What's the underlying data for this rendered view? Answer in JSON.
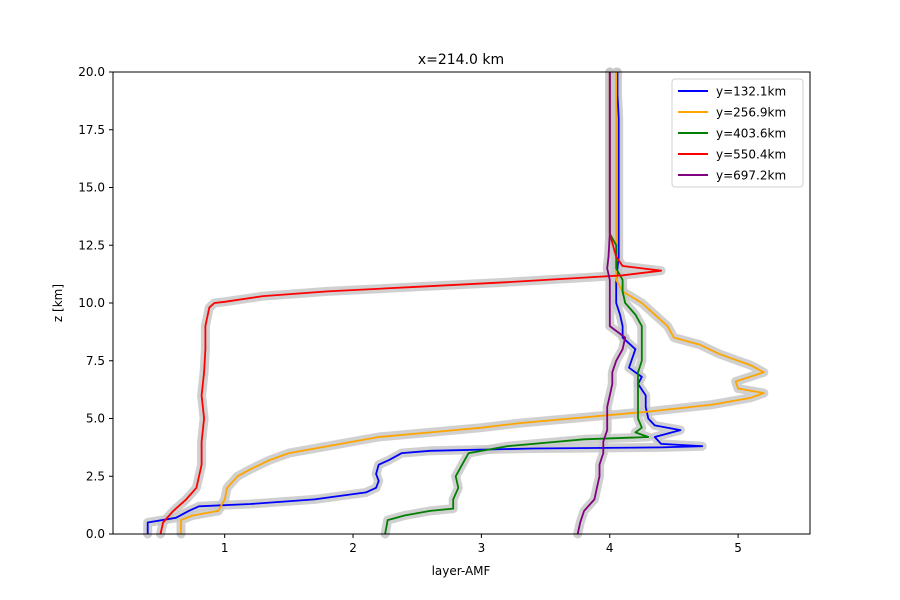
{
  "chart_data": {
    "type": "line",
    "title": "x=214.0 km",
    "xlabel": "layer-AMF",
    "ylabel": "z [km]",
    "xlim": [
      0.13,
      5.56
    ],
    "ylim": [
      0,
      20
    ],
    "xticks": [
      1,
      2,
      3,
      4,
      5
    ],
    "yticks": [
      0.0,
      2.5,
      5.0,
      7.5,
      10.0,
      12.5,
      15.0,
      17.5,
      20.0
    ],
    "grid": false,
    "legend_position": "top-right",
    "series": [
      {
        "name": "y=132.1km",
        "color": "#0000ff",
        "points": [
          [
            0.4,
            0.0
          ],
          [
            0.4,
            0.5
          ],
          [
            0.62,
            0.7
          ],
          [
            0.72,
            1.0
          ],
          [
            0.8,
            1.2
          ],
          [
            1.2,
            1.3
          ],
          [
            1.7,
            1.5
          ],
          [
            2.1,
            1.8
          ],
          [
            2.18,
            2.0
          ],
          [
            2.2,
            2.3
          ],
          [
            2.18,
            2.6
          ],
          [
            2.2,
            3.0
          ],
          [
            2.28,
            3.2
          ],
          [
            2.38,
            3.5
          ],
          [
            2.6,
            3.6
          ],
          [
            3.4,
            3.7
          ],
          [
            4.4,
            3.75
          ],
          [
            4.72,
            3.8
          ],
          [
            4.4,
            3.9
          ],
          [
            4.35,
            4.2
          ],
          [
            4.55,
            4.5
          ],
          [
            4.35,
            4.7
          ],
          [
            4.3,
            5.0
          ],
          [
            4.28,
            5.5
          ],
          [
            4.28,
            6.0
          ],
          [
            4.22,
            6.5
          ],
          [
            4.25,
            6.8
          ],
          [
            4.15,
            7.2
          ],
          [
            4.2,
            8.0
          ],
          [
            4.1,
            8.5
          ],
          [
            4.1,
            9.0
          ],
          [
            4.08,
            9.5
          ],
          [
            4.05,
            10.0
          ],
          [
            4.05,
            11.0
          ],
          [
            4.07,
            12.0
          ],
          [
            4.07,
            13.0
          ],
          [
            4.07,
            14.0
          ],
          [
            4.07,
            15.0
          ],
          [
            4.07,
            16.0
          ],
          [
            4.07,
            17.0
          ],
          [
            4.07,
            18.0
          ],
          [
            4.06,
            19.0
          ],
          [
            4.06,
            20.0
          ]
        ]
      },
      {
        "name": "y=256.9km",
        "color": "#ffa500",
        "points": [
          [
            0.66,
            0.0
          ],
          [
            0.66,
            0.6
          ],
          [
            0.75,
            0.8
          ],
          [
            0.95,
            1.0
          ],
          [
            1.0,
            1.5
          ],
          [
            1.02,
            2.0
          ],
          [
            1.1,
            2.5
          ],
          [
            1.2,
            2.8
          ],
          [
            1.35,
            3.2
          ],
          [
            1.5,
            3.5
          ],
          [
            1.8,
            3.8
          ],
          [
            2.0,
            4.0
          ],
          [
            2.2,
            4.2
          ],
          [
            2.6,
            4.4
          ],
          [
            3.0,
            4.6
          ],
          [
            3.3,
            4.8
          ],
          [
            3.7,
            5.0
          ],
          [
            4.3,
            5.3
          ],
          [
            4.8,
            5.6
          ],
          [
            5.1,
            5.9
          ],
          [
            5.2,
            6.1
          ],
          [
            5.0,
            6.3
          ],
          [
            4.98,
            6.6
          ],
          [
            5.2,
            7.0
          ],
          [
            5.1,
            7.3
          ],
          [
            4.85,
            7.8
          ],
          [
            4.7,
            8.2
          ],
          [
            4.5,
            8.5
          ],
          [
            4.45,
            9.0
          ],
          [
            4.35,
            9.5
          ],
          [
            4.25,
            10.0
          ],
          [
            4.1,
            10.5
          ],
          [
            4.05,
            11.0
          ],
          [
            4.05,
            12.0
          ],
          [
            4.05,
            13.0
          ],
          [
            4.05,
            14.0
          ],
          [
            4.05,
            15.0
          ],
          [
            4.05,
            16.0
          ],
          [
            4.05,
            17.0
          ],
          [
            4.05,
            18.0
          ],
          [
            4.05,
            19.0
          ],
          [
            4.05,
            20.0
          ]
        ]
      },
      {
        "name": "y=403.6km",
        "color": "#008000",
        "points": [
          [
            2.25,
            0.0
          ],
          [
            2.27,
            0.6
          ],
          [
            2.4,
            0.8
          ],
          [
            2.6,
            1.0
          ],
          [
            2.78,
            1.1
          ],
          [
            2.78,
            1.5
          ],
          [
            2.82,
            2.0
          ],
          [
            2.8,
            2.5
          ],
          [
            2.85,
            3.0
          ],
          [
            2.9,
            3.5
          ],
          [
            3.2,
            3.8
          ],
          [
            3.8,
            4.1
          ],
          [
            4.3,
            4.2
          ],
          [
            4.2,
            4.4
          ],
          [
            4.25,
            4.6
          ],
          [
            4.22,
            5.0
          ],
          [
            4.22,
            5.5
          ],
          [
            4.22,
            6.0
          ],
          [
            4.22,
            6.5
          ],
          [
            4.22,
            7.0
          ],
          [
            4.25,
            7.5
          ],
          [
            4.25,
            8.0
          ],
          [
            4.25,
            8.5
          ],
          [
            4.25,
            9.0
          ],
          [
            4.2,
            9.5
          ],
          [
            4.12,
            10.0
          ],
          [
            4.1,
            10.5
          ],
          [
            4.1,
            11.0
          ],
          [
            4.05,
            11.5
          ],
          [
            4.05,
            12.5
          ],
          [
            4.0,
            13.0
          ],
          [
            4.0,
            14.0
          ],
          [
            4.0,
            15.0
          ],
          [
            4.0,
            16.0
          ],
          [
            4.0,
            17.0
          ],
          [
            4.0,
            18.0
          ],
          [
            4.0,
            19.0
          ],
          [
            4.0,
            20.0
          ]
        ]
      },
      {
        "name": "y=550.4km",
        "color": "#ff0000",
        "points": [
          [
            0.5,
            0.0
          ],
          [
            0.52,
            0.5
          ],
          [
            0.6,
            1.0
          ],
          [
            0.7,
            1.5
          ],
          [
            0.78,
            2.0
          ],
          [
            0.8,
            2.5
          ],
          [
            0.82,
            3.0
          ],
          [
            0.82,
            4.0
          ],
          [
            0.84,
            5.0
          ],
          [
            0.82,
            6.0
          ],
          [
            0.84,
            7.0
          ],
          [
            0.85,
            8.0
          ],
          [
            0.85,
            9.0
          ],
          [
            0.88,
            9.8
          ],
          [
            0.92,
            10.0
          ],
          [
            1.0,
            10.05
          ],
          [
            1.3,
            10.3
          ],
          [
            1.8,
            10.5
          ],
          [
            2.5,
            10.7
          ],
          [
            3.2,
            10.9
          ],
          [
            3.8,
            11.1
          ],
          [
            4.1,
            11.2
          ],
          [
            4.4,
            11.4
          ],
          [
            4.1,
            11.6
          ],
          [
            4.05,
            12.0
          ],
          [
            4.0,
            13.0
          ],
          [
            4.0,
            14.0
          ],
          [
            4.0,
            15.0
          ],
          [
            4.0,
            16.0
          ],
          [
            4.0,
            17.0
          ],
          [
            4.0,
            18.0
          ],
          [
            4.0,
            19.0
          ],
          [
            4.0,
            20.0
          ]
        ]
      },
      {
        "name": "y=697.2km",
        "color": "#800080",
        "points": [
          [
            3.75,
            0.0
          ],
          [
            3.77,
            0.5
          ],
          [
            3.8,
            1.0
          ],
          [
            3.88,
            1.5
          ],
          [
            3.9,
            2.0
          ],
          [
            3.92,
            2.5
          ],
          [
            3.92,
            3.0
          ],
          [
            3.95,
            3.5
          ],
          [
            3.95,
            4.0
          ],
          [
            3.98,
            4.5
          ],
          [
            3.98,
            5.0
          ],
          [
            3.98,
            5.5
          ],
          [
            4.0,
            6.0
          ],
          [
            4.02,
            6.5
          ],
          [
            4.02,
            7.0
          ],
          [
            4.05,
            7.5
          ],
          [
            4.1,
            8.0
          ],
          [
            4.12,
            8.5
          ],
          [
            4.0,
            9.0
          ],
          [
            4.0,
            9.5
          ],
          [
            4.0,
            10.0
          ],
          [
            4.0,
            11.0
          ],
          [
            3.98,
            11.5
          ],
          [
            3.99,
            12.0
          ],
          [
            4.0,
            13.0
          ],
          [
            4.0,
            14.0
          ],
          [
            4.0,
            15.0
          ],
          [
            4.0,
            16.0
          ],
          [
            4.0,
            17.0
          ],
          [
            4.0,
            18.0
          ],
          [
            4.0,
            19.0
          ],
          [
            4.0,
            20.0
          ]
        ]
      }
    ]
  }
}
